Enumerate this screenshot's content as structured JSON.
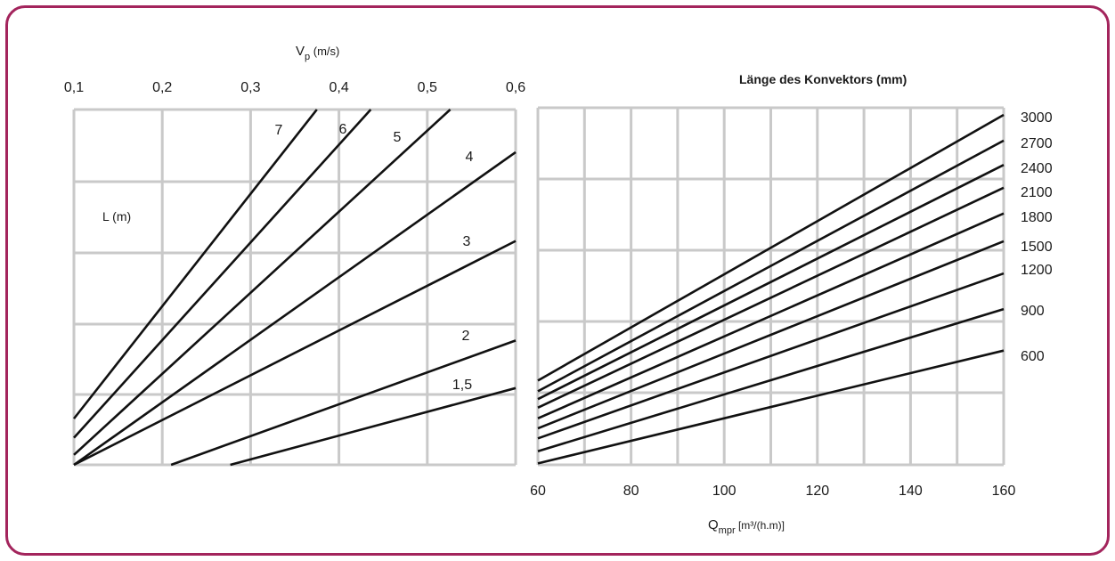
{
  "chart_data": [
    {
      "type": "line",
      "top_axis": {
        "label_main": "V",
        "label_sub": "p",
        "label_unit": " (m/s)",
        "ticks": [
          "0,1",
          "0,2",
          "0,3",
          "0,4",
          "0,5",
          "0,6"
        ],
        "range": [
          0.1,
          0.6
        ]
      },
      "side_label": "L (m)",
      "grid": true,
      "series": [
        {
          "name": "7",
          "x": [
            0.1,
            0.375
          ],
          "y": [
            0.65,
            5.0
          ]
        },
        {
          "name": "6",
          "x": [
            0.1,
            0.436
          ],
          "y": [
            0.38,
            5.0
          ]
        },
        {
          "name": "5",
          "x": [
            0.1,
            0.526
          ],
          "y": [
            0.14,
            5.0
          ]
        },
        {
          "name": "4",
          "x": [
            0.1,
            0.6
          ],
          "y": [
            0.0,
            4.4
          ]
        },
        {
          "name": "3",
          "x": [
            0.1,
            0.6
          ],
          "y": [
            0.0,
            3.15
          ]
        },
        {
          "name": "2",
          "x": [
            0.21,
            0.6
          ],
          "y": [
            0.0,
            1.75
          ]
        },
        {
          "name": "1,5",
          "x": [
            0.277,
            0.6
          ],
          "y": [
            0.0,
            1.08
          ]
        }
      ]
    },
    {
      "type": "line",
      "title": "Länge des Konvektors (mm)",
      "xlabel_main": "Q",
      "xlabel_sub": "mpr",
      "xlabel_unit": " [m³/(h.m)]",
      "x_ticks": [
        "60",
        "80",
        "100",
        "120",
        "140",
        "160"
      ],
      "xlim": [
        60,
        160
      ],
      "grid": true,
      "legend_placement": "right",
      "series": [
        {
          "name": "3000",
          "x": [
            60,
            160
          ],
          "y": [
            1.18,
            4.9
          ]
        },
        {
          "name": "2700",
          "x": [
            60,
            160
          ],
          "y": [
            1.03,
            4.54
          ]
        },
        {
          "name": "2400",
          "x": [
            60,
            160
          ],
          "y": [
            0.92,
            4.2
          ]
        },
        {
          "name": "2100",
          "x": [
            60,
            160
          ],
          "y": [
            0.8,
            3.88
          ]
        },
        {
          "name": "1800",
          "x": [
            60,
            160
          ],
          "y": [
            0.65,
            3.52
          ]
        },
        {
          "name": "1500",
          "x": [
            60,
            160
          ],
          "y": [
            0.51,
            3.13
          ]
        },
        {
          "name": "1200",
          "x": [
            60,
            160
          ],
          "y": [
            0.37,
            2.68
          ]
        },
        {
          "name": "900",
          "x": [
            60,
            160
          ],
          "y": [
            0.19,
            2.18
          ]
        },
        {
          "name": "600",
          "x": [
            60,
            160
          ],
          "y": [
            0.02,
            1.6
          ]
        }
      ]
    }
  ]
}
